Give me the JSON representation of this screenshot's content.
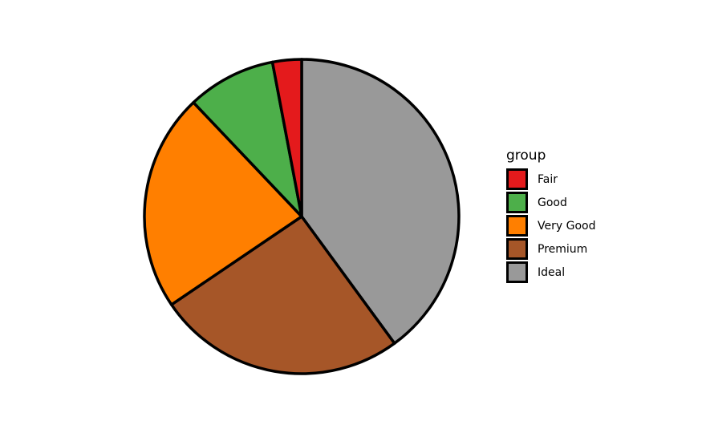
{
  "chart_data": {
    "type": "pie",
    "title": "",
    "legend_title": "group",
    "legend_position": "right",
    "direction": "clockwise from top",
    "slices": [
      {
        "label": "Ideal",
        "value": 39.95,
        "color": "#999999"
      },
      {
        "label": "Premium",
        "value": 25.57,
        "color": "#A65628"
      },
      {
        "label": "Very Good",
        "value": 22.4,
        "color": "#FF7F00"
      },
      {
        "label": "Good",
        "value": 9.1,
        "color": "#4DAF4A"
      },
      {
        "label": "Fair",
        "value": 2.98,
        "color": "#E41A1C"
      }
    ],
    "legend_order": [
      "Fair",
      "Good",
      "Very Good",
      "Premium",
      "Ideal"
    ],
    "stroke_color": "#000000"
  }
}
